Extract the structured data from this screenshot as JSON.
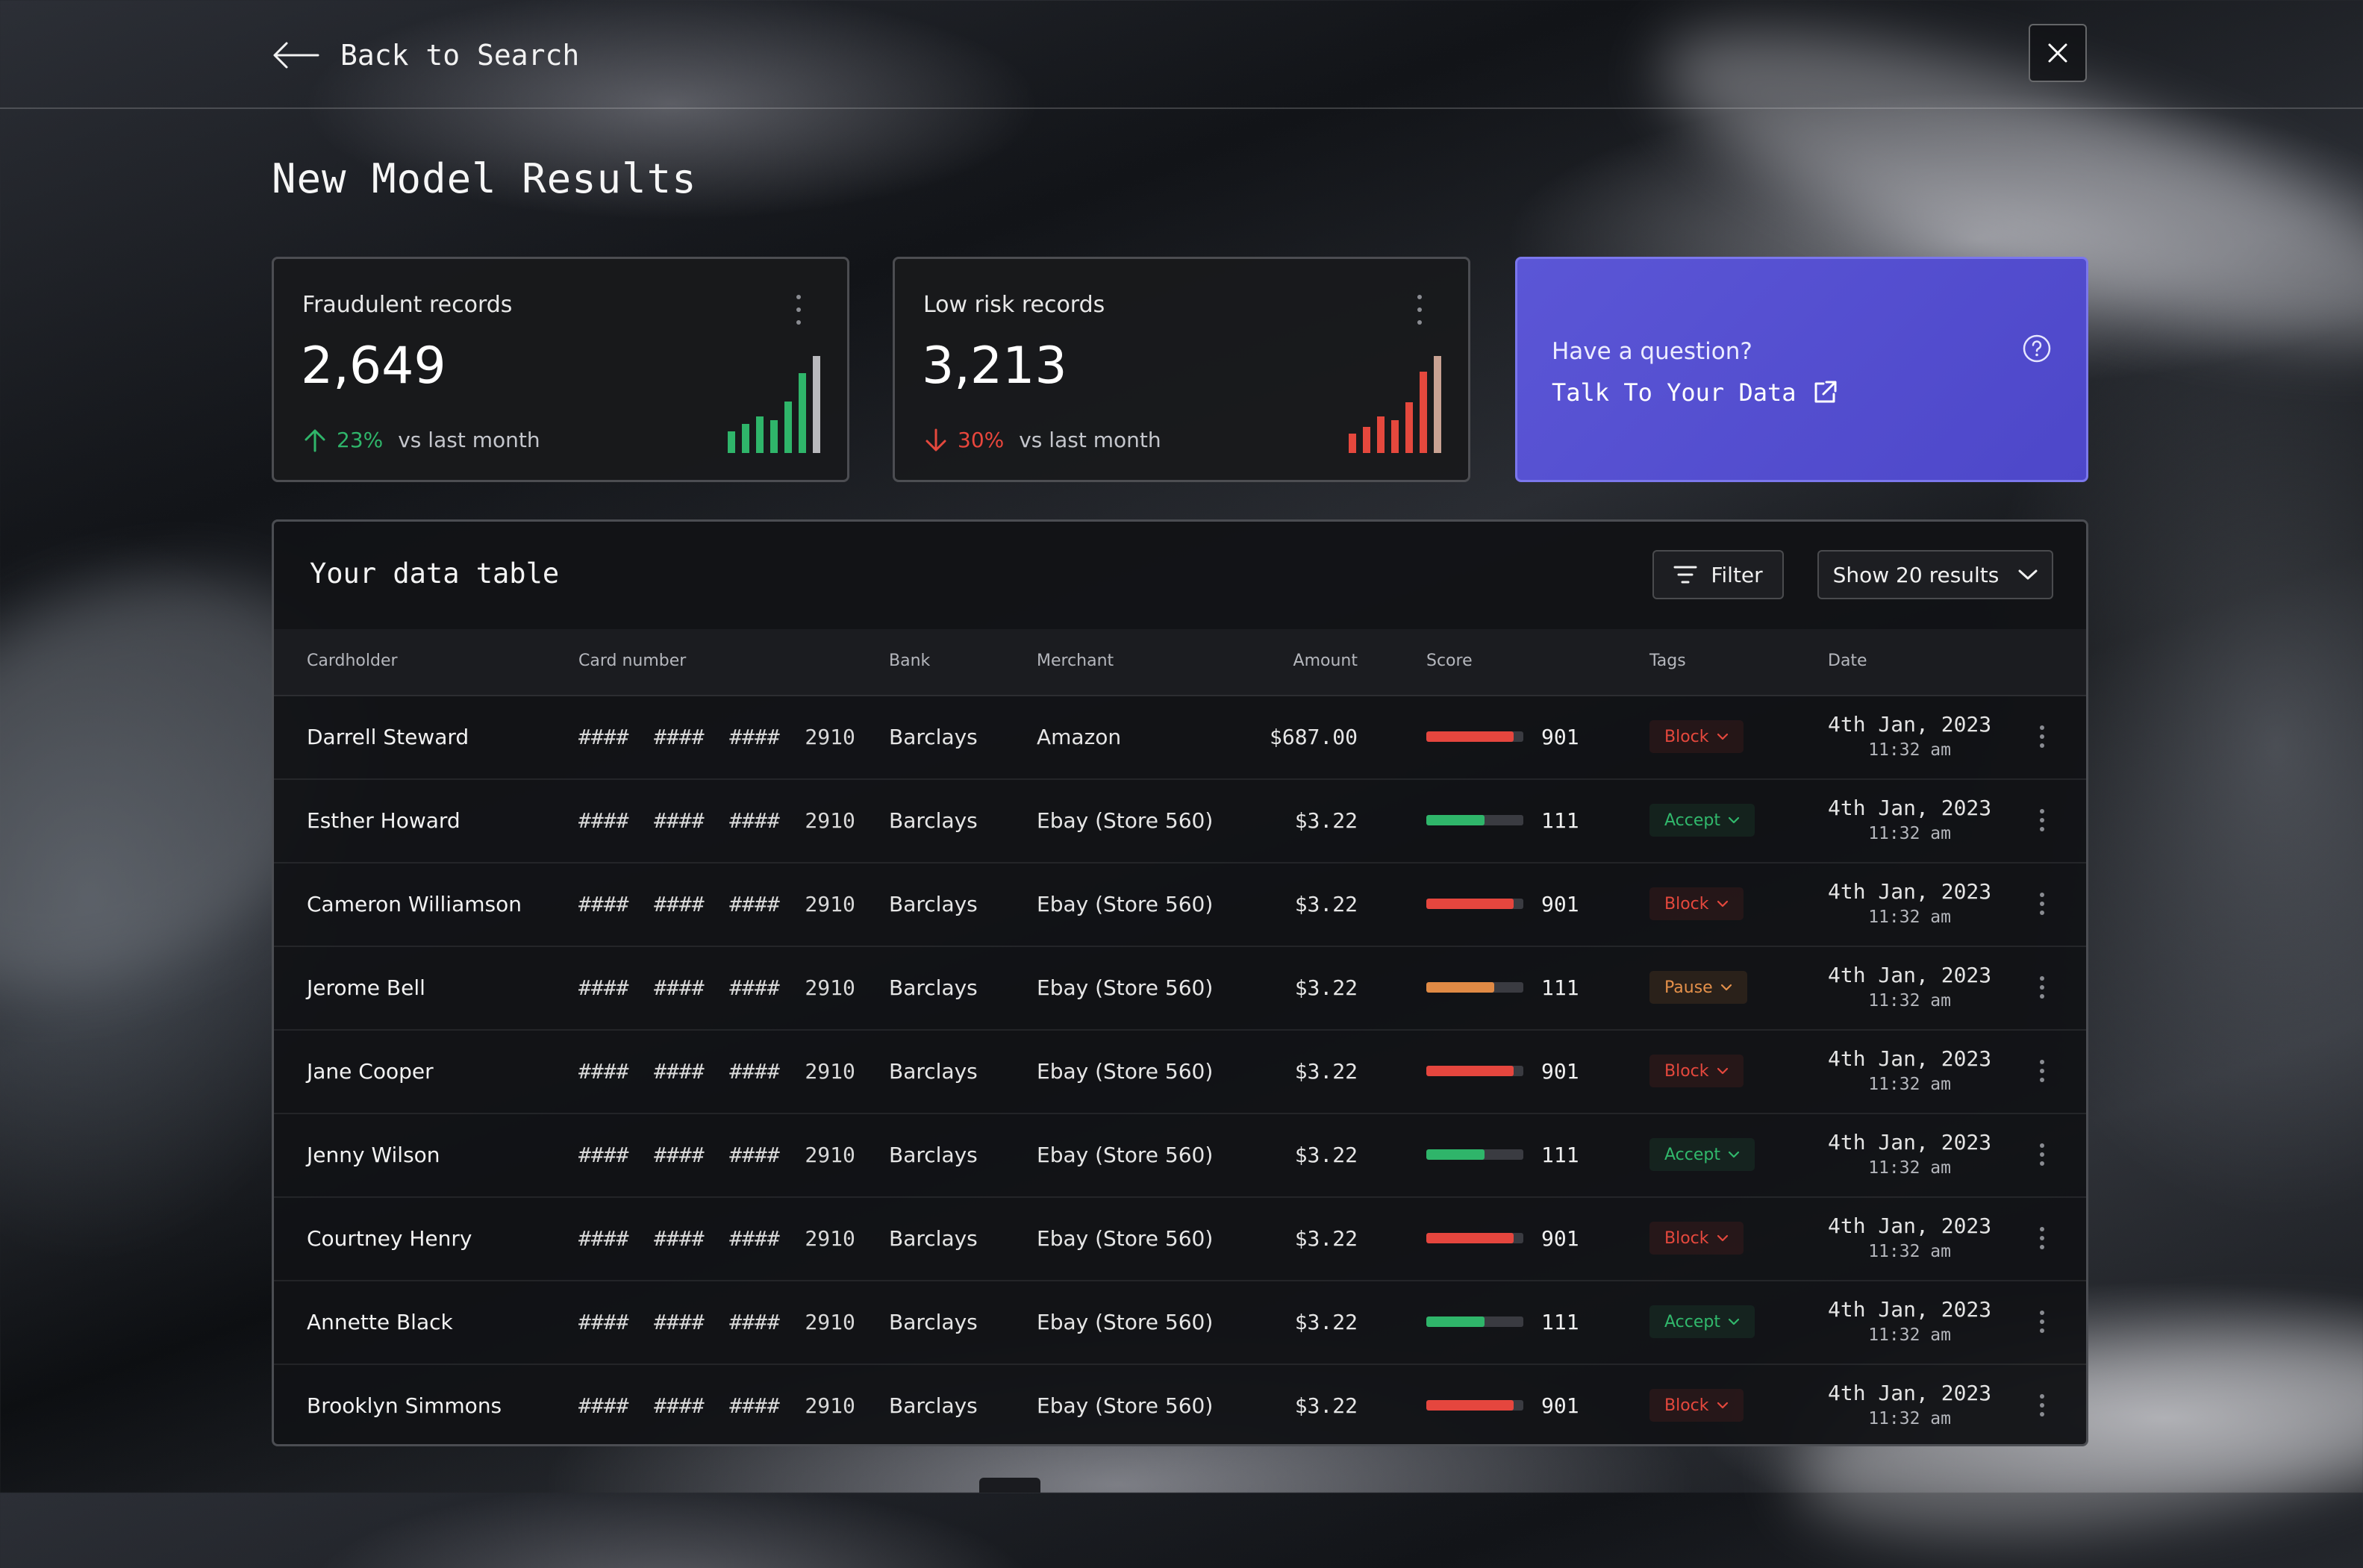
{
  "nav": {
    "back_label": "Back to Search"
  },
  "page": {
    "title": "New Model Results"
  },
  "stats": [
    {
      "label": "Fraudulent records",
      "value": "2,649",
      "trend_direction": "up",
      "trend_pct": "23%",
      "trend_text": "vs last month",
      "spark_levels": [
        0.22,
        0.3,
        0.38,
        0.34,
        0.53,
        0.82,
        1.0
      ],
      "spark_color": "#2fb56a",
      "spark_last_color": "#b9b9bd"
    },
    {
      "label": "Low risk records",
      "value": "3,213",
      "trend_direction": "down",
      "trend_pct": "30%",
      "trend_text": "vs last month",
      "spark_levels": [
        0.2,
        0.27,
        0.38,
        0.34,
        0.52,
        0.84,
        1.0
      ],
      "spark_color": "#e5483d",
      "spark_last_color": "#c9a293"
    }
  ],
  "question_card": {
    "title": "Have a question?",
    "link_label": "Talk To Your Data",
    "background": "#5450d2"
  },
  "table": {
    "title": "Your data table",
    "filter_label": "Filter",
    "results_label": "Show 20 results",
    "columns": [
      "Cardholder",
      "Card number",
      "Bank",
      "Merchant",
      "Amount",
      "Score",
      "Tags",
      "Date"
    ],
    "rows": [
      {
        "cardholder": "Darrell Steward",
        "card": "####  ####  ####  2910",
        "bank": "Barclays",
        "merchant": "Amazon",
        "amount": "$687.00",
        "score": "901",
        "score_level": 0.9,
        "score_color": "#e5463e",
        "tag": "Block",
        "tag_type": "block",
        "date": "4th Jan, 2023",
        "time": "11:32 am"
      },
      {
        "cardholder": "Esther Howard",
        "card": "####  ####  ####  2910",
        "bank": "Barclays",
        "merchant": "Ebay (Store 560)",
        "amount": "$3.22",
        "score": "111",
        "score_level": 0.6,
        "score_color": "#2fb56a",
        "tag": "Accept",
        "tag_type": "accept",
        "date": "4th Jan, 2023",
        "time": "11:32 am"
      },
      {
        "cardholder": "Cameron Williamson",
        "card": "####  ####  ####  2910",
        "bank": "Barclays",
        "merchant": "Ebay (Store 560)",
        "amount": "$3.22",
        "score": "901",
        "score_level": 0.9,
        "score_color": "#e5463e",
        "tag": "Block",
        "tag_type": "block",
        "date": "4th Jan, 2023",
        "time": "11:32 am"
      },
      {
        "cardholder": "Jerome Bell",
        "card": "####  ####  ####  2910",
        "bank": "Barclays",
        "merchant": "Ebay (Store 560)",
        "amount": "$3.22",
        "score": "111",
        "score_level": 0.7,
        "score_color": "#e08a45",
        "tag": "Pause",
        "tag_type": "pause",
        "date": "4th Jan, 2023",
        "time": "11:32 am"
      },
      {
        "cardholder": "Jane Cooper",
        "card": "####  ####  ####  2910",
        "bank": "Barclays",
        "merchant": "Ebay (Store 560)",
        "amount": "$3.22",
        "score": "901",
        "score_level": 0.9,
        "score_color": "#e5463e",
        "tag": "Block",
        "tag_type": "block",
        "date": "4th Jan, 2023",
        "time": "11:32 am"
      },
      {
        "cardholder": "Jenny Wilson",
        "card": "####  ####  ####  2910",
        "bank": "Barclays",
        "merchant": "Ebay (Store 560)",
        "amount": "$3.22",
        "score": "111",
        "score_level": 0.6,
        "score_color": "#2fb56a",
        "tag": "Accept",
        "tag_type": "accept",
        "date": "4th Jan, 2023",
        "time": "11:32 am"
      },
      {
        "cardholder": "Courtney Henry",
        "card": "####  ####  ####  2910",
        "bank": "Barclays",
        "merchant": "Ebay (Store 560)",
        "amount": "$3.22",
        "score": "901",
        "score_level": 0.9,
        "score_color": "#e5463e",
        "tag": "Block",
        "tag_type": "block",
        "date": "4th Jan, 2023",
        "time": "11:32 am"
      },
      {
        "cardholder": "Annette Black",
        "card": "####  ####  ####  2910",
        "bank": "Barclays",
        "merchant": "Ebay (Store 560)",
        "amount": "$3.22",
        "score": "111",
        "score_level": 0.6,
        "score_color": "#2fb56a",
        "tag": "Accept",
        "tag_type": "accept",
        "date": "4th Jan, 2023",
        "time": "11:32 am"
      },
      {
        "cardholder": "Brooklyn Simmons",
        "card": "####  ####  ####  2910",
        "bank": "Barclays",
        "merchant": "Ebay (Store 560)",
        "amount": "$3.22",
        "score": "901",
        "score_level": 0.9,
        "score_color": "#e5463e",
        "tag": "Block",
        "tag_type": "block",
        "date": "4th Jan, 2023",
        "time": "11:32 am"
      }
    ]
  },
  "icons": {
    "back": "arrow-left-icon",
    "close": "close-icon",
    "menu": "kebab-menu-icon",
    "trend_up": "arrow-up-icon",
    "trend_down": "arrow-down-icon",
    "help": "help-circle-icon",
    "external": "external-link-icon",
    "filter": "filter-icon",
    "chevron": "chevron-down-icon"
  }
}
